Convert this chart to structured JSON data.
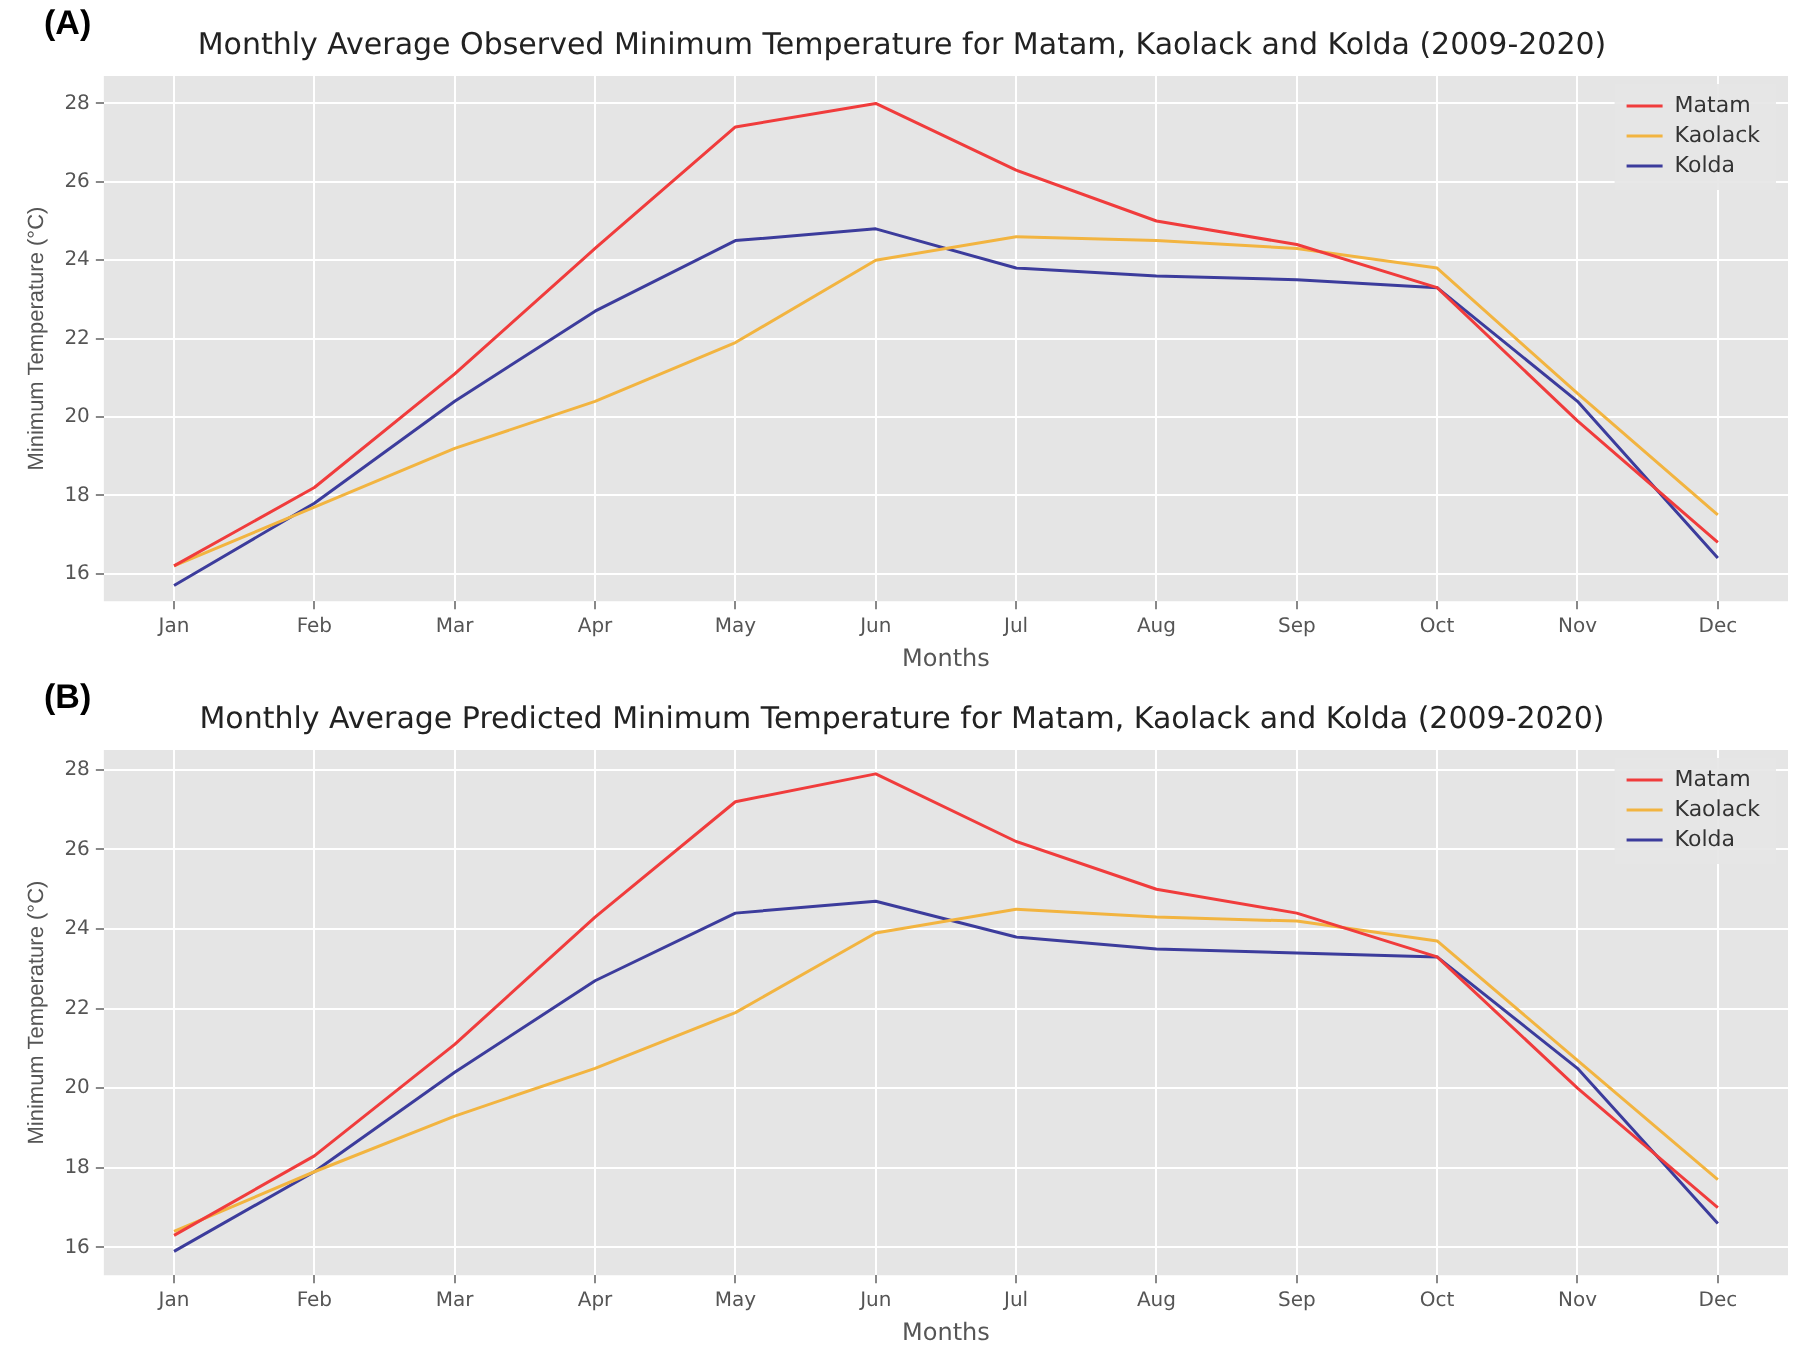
{
  "chart_data": [
    {
      "type": "line",
      "title": "Monthly Average Observed Minimum Temperature for Matam, Kaolack and Kolda (2009-2020)",
      "xlabel": "Months",
      "ylabel": "Minimum Temperature (°C)",
      "annotations": [
        "(A)"
      ],
      "categories": [
        "Jan",
        "Feb",
        "Mar",
        "Apr",
        "May",
        "Jun",
        "Jul",
        "Aug",
        "Sep",
        "Oct",
        "Nov",
        "Dec"
      ],
      "series": [
        {
          "name": "Matam",
          "color": "#f03c3c",
          "values": [
            16.2,
            18.2,
            21.1,
            24.3,
            27.4,
            28.0,
            26.3,
            25.0,
            24.4,
            23.3,
            19.9,
            16.8
          ]
        },
        {
          "name": "Kaolack",
          "color": "#f2b440",
          "values": [
            16.2,
            17.7,
            19.2,
            20.4,
            21.9,
            24.0,
            24.6,
            24.5,
            24.3,
            23.8,
            20.6,
            17.5
          ]
        },
        {
          "name": "Kolda",
          "color": "#3c3c9c",
          "values": [
            15.7,
            17.8,
            20.4,
            22.7,
            24.5,
            24.8,
            23.8,
            23.6,
            23.5,
            23.3,
            20.4,
            16.4
          ]
        }
      ],
      "ylim": [
        15.3,
        28.7
      ],
      "yticks": [
        16,
        18,
        20,
        22,
        24,
        26,
        28
      ],
      "grid": true,
      "legend": "top right"
    },
    {
      "type": "line",
      "title": "Monthly Average Predicted Minimum Temperature for Matam, Kaolack and Kolda (2009-2020)",
      "xlabel": "Months",
      "ylabel": "Minimum Temperature (°C)",
      "annotations": [
        "(B)"
      ],
      "categories": [
        "Jan",
        "Feb",
        "Mar",
        "Apr",
        "May",
        "Jun",
        "Jul",
        "Aug",
        "Sep",
        "Oct",
        "Nov",
        "Dec"
      ],
      "series": [
        {
          "name": "Matam",
          "color": "#f03c3c",
          "values": [
            16.3,
            18.3,
            21.1,
            24.3,
            27.2,
            27.9,
            26.2,
            25.0,
            24.4,
            23.3,
            20.0,
            17.0
          ]
        },
        {
          "name": "Kaolack",
          "color": "#f2b440",
          "values": [
            16.4,
            17.9,
            19.3,
            20.5,
            21.9,
            23.9,
            24.5,
            24.3,
            24.2,
            23.7,
            20.7,
            17.7
          ]
        },
        {
          "name": "Kolda",
          "color": "#3c3c9c",
          "values": [
            15.9,
            17.9,
            20.4,
            22.7,
            24.4,
            24.7,
            23.8,
            23.5,
            23.4,
            23.3,
            20.5,
            16.6
          ]
        }
      ],
      "ylim": [
        15.3,
        28.5
      ],
      "yticks": [
        16,
        18,
        20,
        22,
        24,
        26,
        28
      ],
      "grid": true,
      "legend": "top right"
    }
  ]
}
